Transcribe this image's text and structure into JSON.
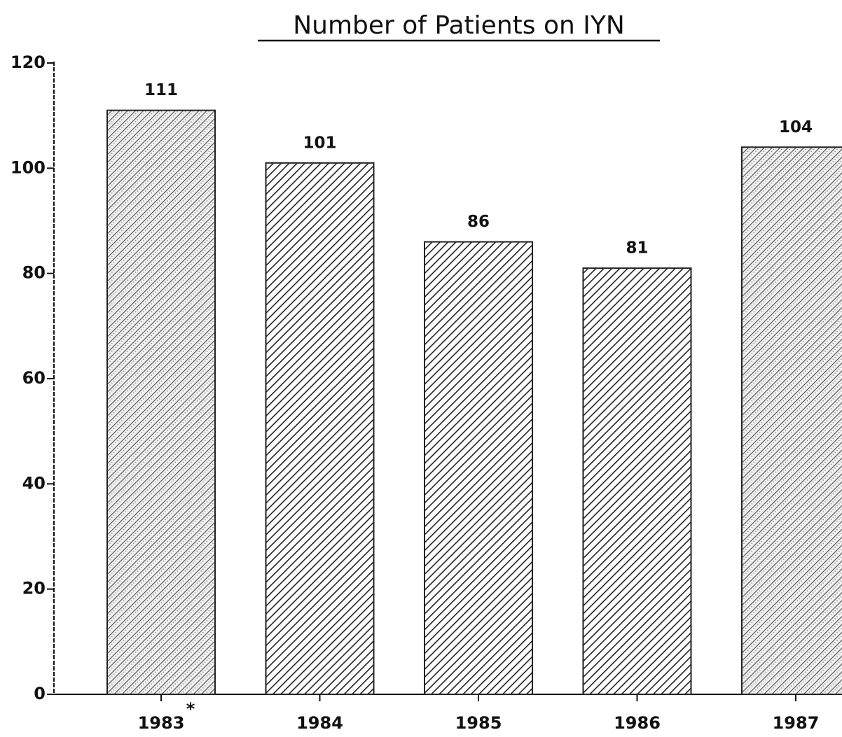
{
  "chart_data": {
    "type": "bar",
    "title": "Number of Patients on IYN",
    "categories": [
      "1983",
      "1984",
      "1985",
      "1986",
      "1987"
    ],
    "footnote_mark": "*",
    "values": [
      111,
      101,
      86,
      81,
      104
    ],
    "fills": [
      "stipple",
      "hatch",
      "hatch",
      "hatch",
      "stipple"
    ],
    "color": "#222222",
    "ylim": [
      0,
      120
    ],
    "yticks": [
      0,
      20,
      40,
      60,
      80,
      100,
      120
    ],
    "grid": false
  }
}
